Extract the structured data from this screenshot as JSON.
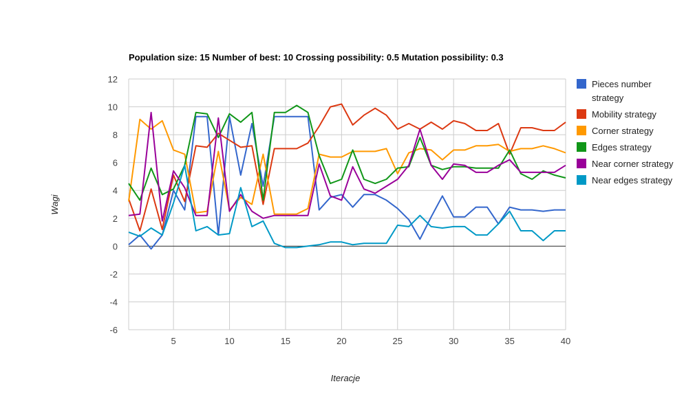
{
  "chart_data": {
    "type": "line",
    "title": "Population size: 15 Number of best: 10 Crossing possibility: 0.5 Mutation possibility: 0.3",
    "xlabel": "Iteracje",
    "ylabel": "Wagi",
    "xlim": [
      1,
      40
    ],
    "ylim": [
      -6,
      12
    ],
    "xticks": [
      "5",
      "10",
      "15",
      "20",
      "25",
      "30",
      "35",
      "40"
    ],
    "yticks": [
      "12",
      "10",
      "8",
      "6",
      "4",
      "2",
      "0",
      "-2",
      "-4",
      "-6"
    ],
    "grid": true,
    "legend_position": "right",
    "x": [
      1,
      2,
      3,
      4,
      5,
      6,
      7,
      8,
      9,
      10,
      11,
      12,
      13,
      14,
      15,
      16,
      17,
      18,
      19,
      20,
      21,
      22,
      23,
      24,
      25,
      26,
      27,
      28,
      29,
      30,
      31,
      32,
      33,
      34,
      35,
      36,
      37,
      38,
      39,
      40
    ],
    "series": [
      {
        "name": "Pieces number strategy",
        "color": "#3366cc",
        "values": [
          0.1,
          0.8,
          -0.2,
          0.8,
          4.0,
          2.6,
          9.3,
          9.3,
          0.8,
          9.3,
          5.1,
          8.8,
          4.3,
          9.3,
          9.3,
          9.3,
          9.3,
          2.6,
          3.5,
          3.7,
          2.8,
          3.7,
          3.7,
          3.3,
          2.7,
          1.9,
          0.5,
          2.1,
          3.6,
          2.1,
          2.1,
          2.8,
          2.8,
          1.6,
          2.8,
          2.6,
          2.6,
          2.5,
          2.6,
          2.6
        ]
      },
      {
        "name": "Mobility strategy",
        "color": "#dc3912",
        "values": [
          3.4,
          1.1,
          4.1,
          1.2,
          5.1,
          3.2,
          7.2,
          7.1,
          8.1,
          7.6,
          7.1,
          7.2,
          3.0,
          7.0,
          7.0,
          7.0,
          7.4,
          8.6,
          10.0,
          10.2,
          8.7,
          9.4,
          9.9,
          9.4,
          8.4,
          8.8,
          8.4,
          8.9,
          8.4,
          9.0,
          8.8,
          8.3,
          8.3,
          8.8,
          6.6,
          8.5,
          8.5,
          8.3,
          8.3,
          8.9
        ]
      },
      {
        "name": "Corner strategy",
        "color": "#ff9900",
        "values": [
          3.2,
          9.1,
          8.4,
          9.0,
          6.9,
          6.6,
          2.4,
          2.5,
          6.8,
          2.6,
          3.5,
          3.0,
          6.6,
          2.3,
          2.3,
          2.3,
          2.7,
          6.6,
          6.4,
          6.4,
          6.8,
          6.8,
          6.8,
          7.0,
          5.2,
          6.7,
          7.0,
          6.9,
          6.2,
          6.9,
          6.9,
          7.2,
          7.2,
          7.3,
          6.8,
          7.0,
          7.0,
          7.2,
          7.0,
          6.7
        ]
      },
      {
        "name": "Edges strategy",
        "color": "#109618",
        "values": [
          4.5,
          3.3,
          5.6,
          3.7,
          4.1,
          5.8,
          9.6,
          9.5,
          7.8,
          9.5,
          8.9,
          9.6,
          3.3,
          9.6,
          9.6,
          10.1,
          9.6,
          6.5,
          4.5,
          4.8,
          6.9,
          4.8,
          4.5,
          4.8,
          5.6,
          5.7,
          7.8,
          5.8,
          5.5,
          5.7,
          5.7,
          5.6,
          5.6,
          5.6,
          6.9,
          5.2,
          4.8,
          5.4,
          5.1,
          4.9
        ]
      },
      {
        "name": "Near corner strategy",
        "color": "#990099",
        "values": [
          2.2,
          2.3,
          9.6,
          1.8,
          5.4,
          4.2,
          2.2,
          2.2,
          9.2,
          2.5,
          3.7,
          2.5,
          2.0,
          2.2,
          2.2,
          2.2,
          2.2,
          5.9,
          3.6,
          3.3,
          5.7,
          4.1,
          3.8,
          4.3,
          4.8,
          5.8,
          8.4,
          5.8,
          4.8,
          5.9,
          5.8,
          5.3,
          5.3,
          5.8,
          6.2,
          5.3,
          5.3,
          5.3,
          5.3,
          5.8
        ]
      },
      {
        "name": "Near edges strategy",
        "color": "#0099c6",
        "values": [
          1.0,
          0.7,
          1.3,
          0.8,
          3.1,
          5.8,
          1.1,
          1.4,
          0.8,
          0.9,
          4.2,
          1.4,
          1.8,
          0.2,
          -0.1,
          -0.1,
          0.0,
          0.1,
          0.3,
          0.3,
          0.1,
          0.2,
          0.2,
          0.2,
          1.5,
          1.4,
          2.2,
          1.4,
          1.3,
          1.4,
          1.4,
          0.8,
          0.8,
          1.6,
          2.5,
          1.1,
          1.1,
          0.4,
          1.1,
          1.1
        ]
      }
    ]
  }
}
